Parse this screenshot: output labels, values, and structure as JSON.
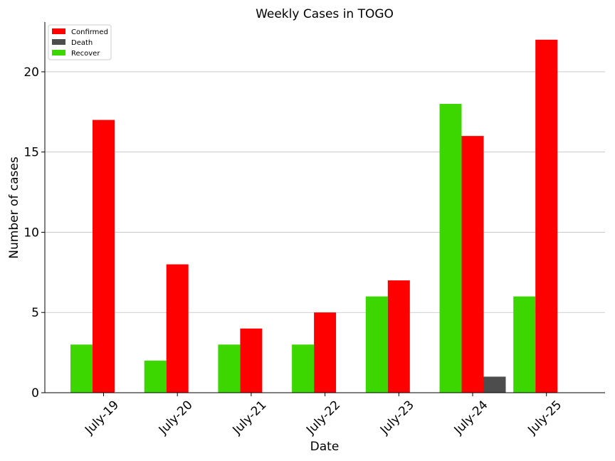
{
  "chart_data": {
    "type": "bar",
    "title": "Weekly Cases in TOGO",
    "xlabel": "Date",
    "ylabel": "Number of cases",
    "categories": [
      "July-19",
      "July-20",
      "July-21",
      "July-22",
      "July-23",
      "July-24",
      "July-25"
    ],
    "series": [
      {
        "name": "Recover",
        "color": "#3cd700",
        "values": [
          3,
          2,
          3,
          3,
          6,
          18,
          6
        ]
      },
      {
        "name": "Confirmed",
        "color": "#ff0000",
        "values": [
          17,
          8,
          4,
          5,
          7,
          16,
          22
        ]
      },
      {
        "name": "Death",
        "color": "#4d4d4d",
        "values": [
          0,
          0,
          0,
          0,
          0,
          1,
          0
        ]
      }
    ],
    "legend_order": [
      "Confirmed",
      "Death",
      "Recover"
    ],
    "legend_position": "top-left",
    "ylim": [
      0,
      23.1
    ],
    "yticks": [
      0,
      5,
      10,
      15,
      20
    ],
    "grid": "horizontal"
  }
}
